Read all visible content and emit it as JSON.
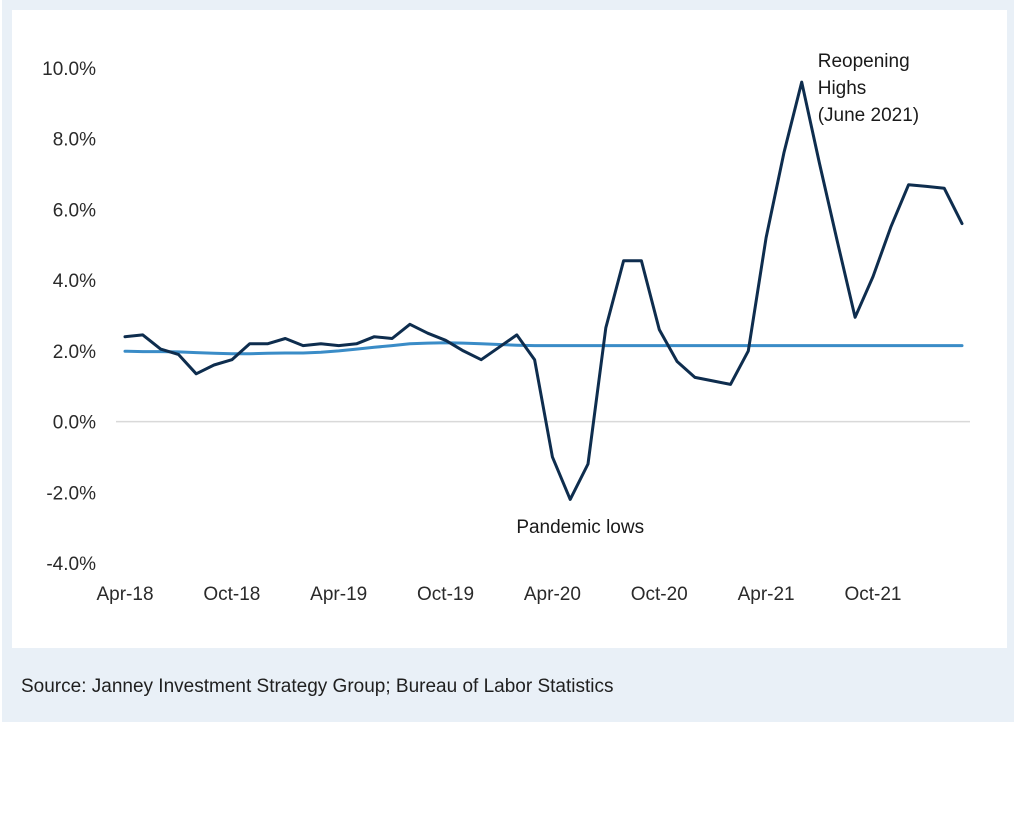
{
  "source_note": "Source: Janney Investment Strategy Group; Bureau of Labor Statistics",
  "chart_data": {
    "type": "line",
    "x": [
      "Apr-18",
      "May-18",
      "Jun-18",
      "Jul-18",
      "Aug-18",
      "Sep-18",
      "Oct-18",
      "Nov-18",
      "Dec-18",
      "Jan-19",
      "Feb-19",
      "Mar-19",
      "Apr-19",
      "May-19",
      "Jun-19",
      "Jul-19",
      "Aug-19",
      "Sep-19",
      "Oct-19",
      "Nov-19",
      "Dec-19",
      "Jan-20",
      "Feb-20",
      "Mar-20",
      "Apr-20",
      "May-20",
      "Jun-20",
      "Jul-20",
      "Aug-20",
      "Sep-20",
      "Oct-20",
      "Nov-20",
      "Dec-20",
      "Jan-21",
      "Feb-21",
      "Mar-21",
      "Apr-21",
      "May-21",
      "Jun-21",
      "Jul-21",
      "Aug-21",
      "Sep-21",
      "Oct-21",
      "Nov-21",
      "Dec-21",
      "Jan-22",
      "Feb-22",
      "Mar-22"
    ],
    "xticks": [
      "Apr-18",
      "Oct-18",
      "Apr-19",
      "Oct-19",
      "Apr-20",
      "Oct-20",
      "Apr-21",
      "Oct-21"
    ],
    "yticks": [
      "10.0%",
      "8.0%",
      "6.0%",
      "4.0%",
      "2.0%",
      "0.0%",
      "-2.0%",
      "-4.0%"
    ],
    "ylim": [
      -4,
      10
    ],
    "series": [
      {
        "color": "#0e2d4e",
        "values": [
          2.4,
          2.45,
          2.05,
          1.9,
          1.35,
          1.6,
          1.75,
          2.2,
          2.2,
          2.35,
          2.15,
          2.2,
          2.15,
          2.2,
          2.4,
          2.35,
          2.75,
          2.5,
          2.3,
          2.0,
          1.75,
          2.1,
          2.45,
          1.75,
          -1.0,
          -2.2,
          -1.2,
          2.65,
          4.55,
          4.55,
          2.6,
          1.7,
          1.25,
          1.15,
          1.05,
          2.0,
          5.2,
          7.6,
          9.6,
          7.3,
          5.1,
          2.95,
          4.1,
          5.5,
          6.7,
          6.65,
          6.6,
          5.6
        ]
      },
      {
        "color": "#3a8cc7",
        "values": [
          1.99,
          1.98,
          1.98,
          1.97,
          1.95,
          1.93,
          1.92,
          1.92,
          1.93,
          1.94,
          1.94,
          1.96,
          2.0,
          2.05,
          2.1,
          2.15,
          2.2,
          2.22,
          2.23,
          2.22,
          2.2,
          2.18,
          2.16,
          2.15,
          2.15,
          2.15,
          2.15,
          2.15,
          2.15,
          2.15,
          2.15,
          2.15,
          2.15,
          2.15,
          2.15,
          2.15,
          2.15,
          2.15,
          2.15,
          2.15,
          2.15,
          2.15,
          2.15,
          2.15,
          2.15,
          2.15,
          2.15,
          2.15
        ]
      }
    ],
    "annotations": [
      {
        "lines": [
          "Reopening",
          "Highs",
          "(June 2021)"
        ],
        "x": "Jun-21",
        "y": 9.6
      },
      {
        "lines": [
          "Pandemic lows"
        ],
        "x": "May-20",
        "y": -2.2
      }
    ],
    "grid": false
  }
}
